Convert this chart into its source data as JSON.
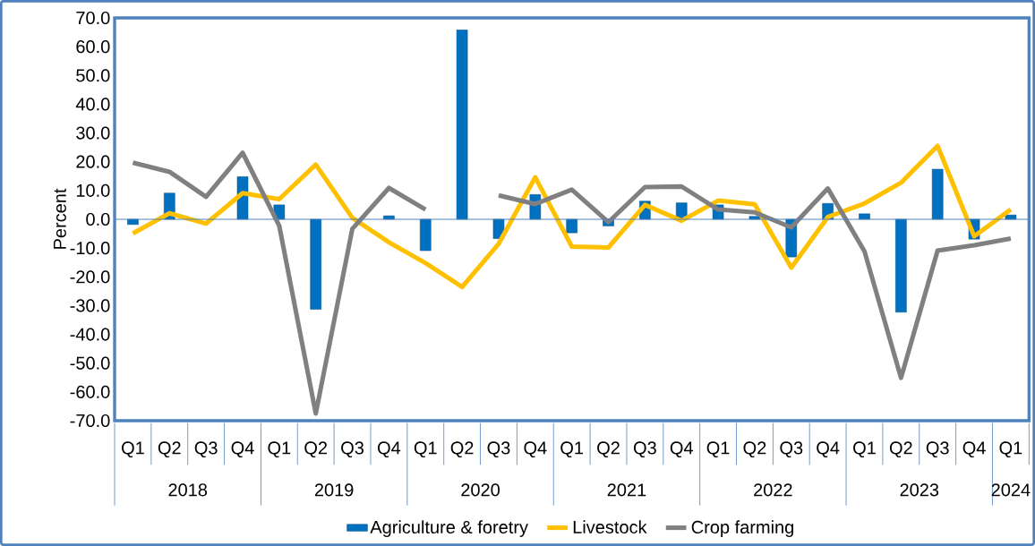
{
  "chart_data": {
    "type": "bar",
    "ylabel": "Percent",
    "categories": [
      "Q1",
      "Q2",
      "Q3",
      "Q4",
      "Q1",
      "Q2",
      "Q3",
      "Q4",
      "Q1",
      "Q2",
      "Q3",
      "Q4",
      "Q1",
      "Q2",
      "Q3",
      "Q4",
      "Q1",
      "Q2",
      "Q3",
      "Q4",
      "Q1",
      "Q2",
      "Q3",
      "Q4",
      "Q1"
    ],
    "annotations": [
      "2018",
      "2019",
      "2020",
      "2021",
      "2022",
      "2023",
      "2024"
    ],
    "series": [
      {
        "name": "Agriculture & foretry",
        "color": "#0070c0",
        "values": [
          -1.8,
          9.1,
          null,
          14.8,
          5.0,
          -31.3,
          null,
          1.2,
          -10.9,
          65.8,
          -6.7,
          8.6,
          -4.7,
          -2.3,
          6.3,
          5.7,
          5.0,
          1.0,
          -13.1,
          5.5,
          1.9,
          -32.3,
          17.4,
          -6.9,
          1.5
        ]
      },
      {
        "name": "Livestock",
        "type": "line",
        "color": "#ffc000",
        "values": [
          -4.9,
          2.1,
          -1.5,
          9.1,
          7.0,
          19.0,
          0.5,
          -8.0,
          -15.2,
          -23.5,
          -8.5,
          14.6,
          -9.5,
          -9.8,
          5.0,
          -0.5,
          6.5,
          5.2,
          -16.8,
          0.8,
          5.5,
          12.7,
          25.5,
          -5.9,
          3.4
        ]
      },
      {
        "name": "Crop farming",
        "type": "line",
        "color": "#808080",
        "values": [
          19.7,
          16.5,
          7.8,
          23.1,
          -2.2,
          -67.5,
          -3.3,
          10.9,
          3.4,
          null,
          8.3,
          5.3,
          10.3,
          -1.0,
          11.2,
          11.4,
          3.4,
          2.4,
          -2.8,
          10.7,
          -11.1,
          -55.1,
          -10.9,
          -9.0,
          -6.7
        ]
      }
    ],
    "ylim": [
      -70,
      70
    ],
    "yticks": [
      {
        "value": -70,
        "label": "-70.0"
      },
      {
        "value": -60,
        "label": "-60.0"
      },
      {
        "value": -50,
        "label": "-50.0"
      },
      {
        "value": -40,
        "label": "-40.0"
      },
      {
        "value": -30,
        "label": "-30.0"
      },
      {
        "value": -20,
        "label": "-20.0"
      },
      {
        "value": -10,
        "label": "-10.0"
      },
      {
        "value": 0,
        "label": "0.0"
      },
      {
        "value": 10,
        "label": "10.0"
      },
      {
        "value": 20,
        "label": "20.0"
      },
      {
        "value": 30,
        "label": "30.0"
      },
      {
        "value": 40,
        "label": "40.0"
      },
      {
        "value": 50,
        "label": "50.0"
      },
      {
        "value": 60,
        "label": "60.0"
      },
      {
        "value": 70,
        "label": "70.0"
      }
    ],
    "ref_lines": [
      {
        "axis": "y",
        "value": 0,
        "color": "#4f81bd"
      }
    ],
    "grid": false,
    "legend": "bottom"
  }
}
